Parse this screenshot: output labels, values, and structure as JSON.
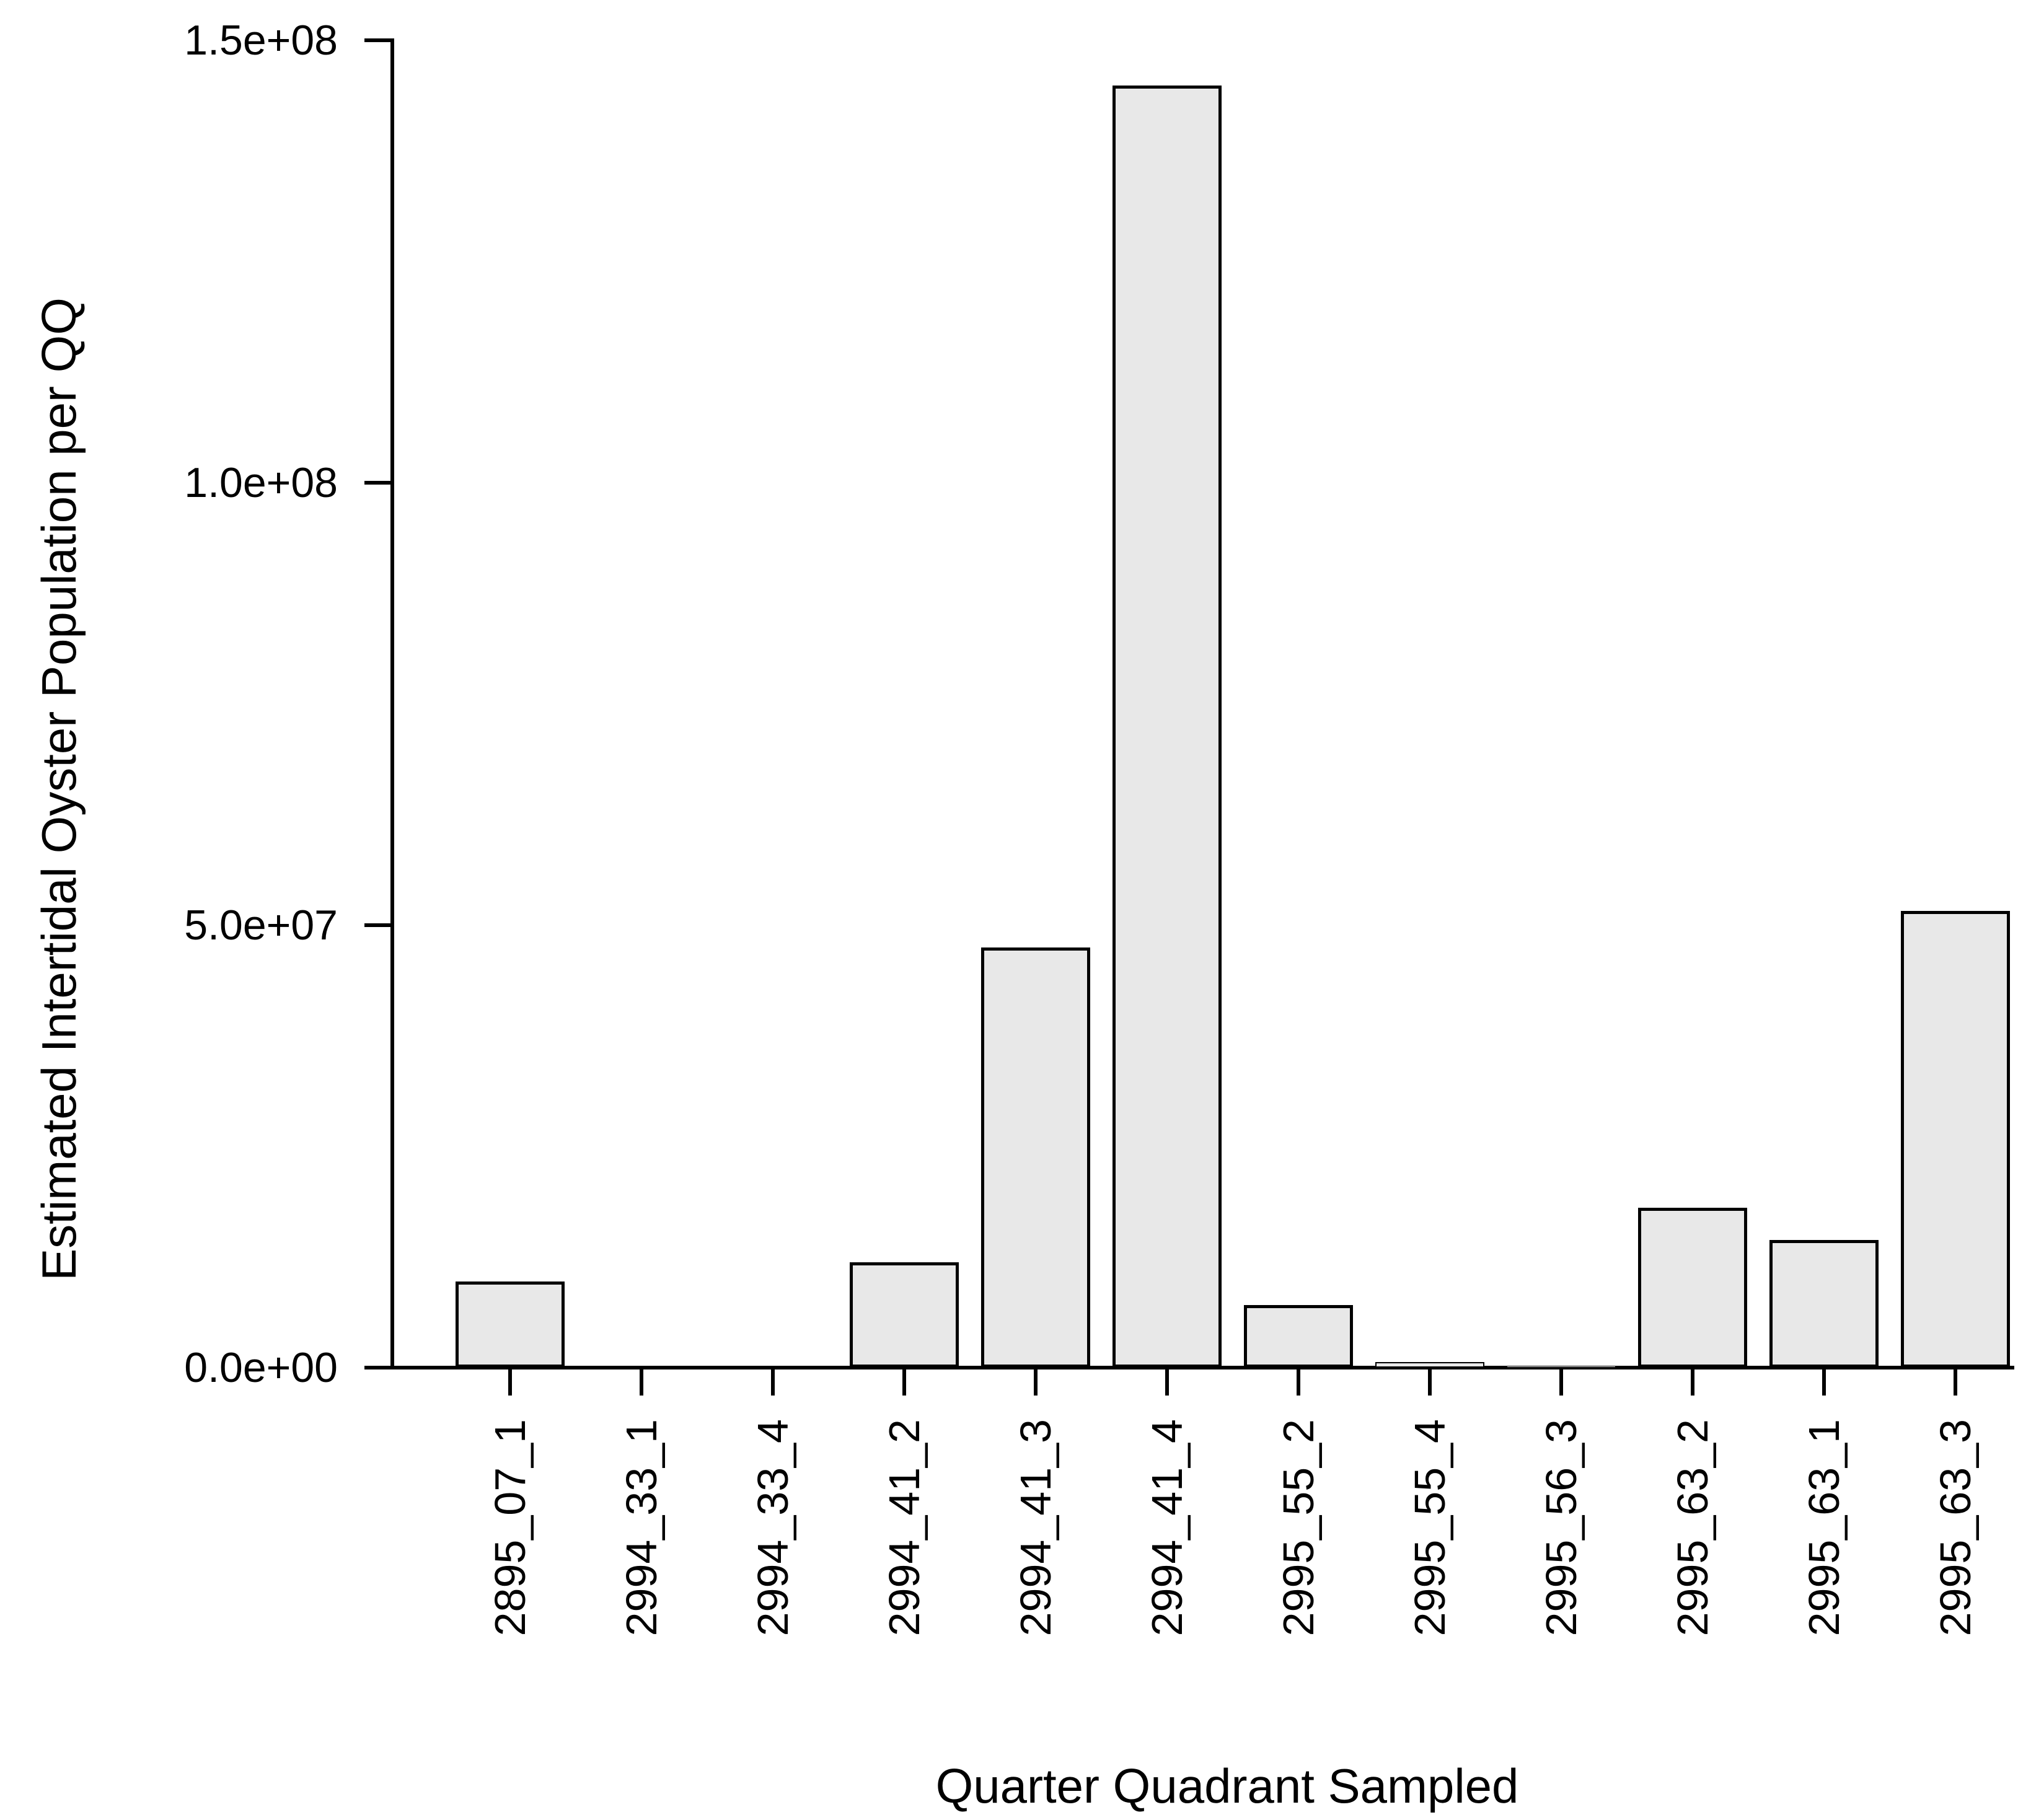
{
  "chart_data": {
    "type": "bar",
    "title": "",
    "xlabel": "Quarter Quadrant Sampled",
    "ylabel": "Estimated Intertidal Oyster Population per QQ",
    "categories": [
      "2895_07_1",
      "2994_33_1",
      "2994_33_4",
      "2994_41_2",
      "2994_41_3",
      "2994_41_4",
      "2995_55_2",
      "2995_55_4",
      "2995_56_3",
      "2995_63_2",
      "2995_63_1",
      "2995_63_3"
    ],
    "values": [
      9700000,
      0,
      0,
      11900000,
      47500000,
      144900000,
      7100000,
      630000,
      200000,
      18100000,
      14400000,
      51600000
    ],
    "ylim": [
      0,
      150000000
    ],
    "yticks": [
      {
        "value": 0,
        "label": "0.0e+00"
      },
      {
        "value": 50000000,
        "label": "5.0e+07"
      },
      {
        "value": 100000000,
        "label": "1.0e+08"
      },
      {
        "value": 150000000,
        "label": "1.5e+08"
      }
    ],
    "grid": false,
    "legend": null,
    "background_color": "#ffffff",
    "bar_fill_color": "#e8e8e8",
    "bar_border_color": "#000000",
    "axis_color": "#000000"
  }
}
